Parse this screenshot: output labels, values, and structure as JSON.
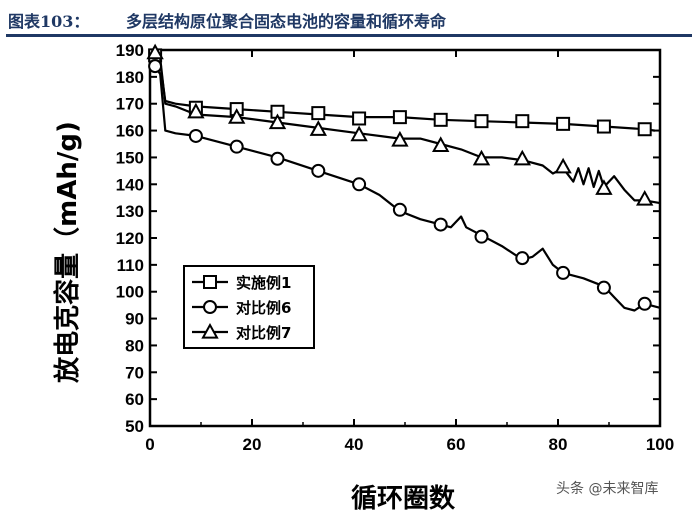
{
  "header": {
    "figure_no": "图表103：",
    "title": "多层结构原位聚合固态电池的容量和循环寿命"
  },
  "watermark": "头条 @未来智库",
  "chart_data": {
    "type": "line",
    "xlabel": "循环圈数",
    "ylabel": "放电克容量（mAh/g)",
    "xlim": [
      0,
      100
    ],
    "ylim": [
      50,
      190
    ],
    "xticks": [
      0,
      20,
      40,
      60,
      80,
      100
    ],
    "yticks": [
      50,
      60,
      70,
      80,
      90,
      100,
      110,
      120,
      130,
      140,
      150,
      160,
      170,
      180,
      190
    ],
    "grid": false,
    "legend_position": "lower-left",
    "series": [
      {
        "name": "实施例1",
        "marker": "square",
        "color": "#000000",
        "line": [
          [
            1,
            187
          ],
          [
            2,
            185
          ],
          [
            3,
            171
          ],
          [
            5,
            170
          ],
          [
            9,
            169
          ],
          [
            17,
            168
          ],
          [
            25,
            167
          ],
          [
            33,
            166
          ],
          [
            41,
            165
          ],
          [
            49,
            165
          ],
          [
            57,
            164
          ],
          [
            65,
            163.5
          ],
          [
            73,
            163
          ],
          [
            81,
            162.5
          ],
          [
            89,
            161.5
          ],
          [
            97,
            160.5
          ],
          [
            99,
            160
          ]
        ],
        "markers": [
          [
            1,
            188
          ],
          [
            9,
            168.5
          ],
          [
            17,
            168
          ],
          [
            25,
            167
          ],
          [
            33,
            166.5
          ],
          [
            41,
            164.5
          ],
          [
            49,
            165
          ],
          [
            57,
            164
          ],
          [
            65,
            163.5
          ],
          [
            73,
            163.5
          ],
          [
            81,
            162.5
          ],
          [
            89,
            161.5
          ],
          [
            97,
            160.5
          ]
        ]
      },
      {
        "name": "对比例6",
        "marker": "circle",
        "color": "#000000",
        "line": [
          [
            1,
            184
          ],
          [
            2,
            181
          ],
          [
            3,
            160
          ],
          [
            5,
            159
          ],
          [
            9,
            158
          ],
          [
            17,
            154
          ],
          [
            25,
            150
          ],
          [
            33,
            145
          ],
          [
            41,
            140
          ],
          [
            45,
            136
          ],
          [
            49,
            130
          ],
          [
            53,
            127
          ],
          [
            57,
            125
          ],
          [
            59,
            124
          ],
          [
            61,
            128
          ],
          [
            62,
            124
          ],
          [
            65,
            121
          ],
          [
            69,
            117
          ],
          [
            73,
            112
          ],
          [
            75,
            113
          ],
          [
            77,
            116
          ],
          [
            79,
            110
          ],
          [
            81,
            107
          ],
          [
            85,
            105
          ],
          [
            89,
            102
          ],
          [
            91,
            98
          ],
          [
            93,
            94
          ],
          [
            95,
            93
          ],
          [
            97,
            95.5
          ],
          [
            100,
            94
          ]
        ],
        "markers": [
          [
            1,
            184
          ],
          [
            9,
            158
          ],
          [
            17,
            154
          ],
          [
            25,
            149.5
          ],
          [
            33,
            145
          ],
          [
            41,
            140
          ],
          [
            49,
            130.5
          ],
          [
            57,
            125
          ],
          [
            65,
            120.5
          ],
          [
            73,
            112.5
          ],
          [
            81,
            107
          ],
          [
            89,
            101.5
          ],
          [
            97,
            95.5
          ]
        ]
      },
      {
        "name": "对比例7",
        "marker": "triangle",
        "color": "#000000",
        "line": [
          [
            1,
            189
          ],
          [
            2,
            187
          ],
          [
            3,
            170
          ],
          [
            5,
            169
          ],
          [
            9,
            166
          ],
          [
            17,
            165
          ],
          [
            25,
            163
          ],
          [
            33,
            161
          ],
          [
            41,
            159
          ],
          [
            49,
            157
          ],
          [
            53,
            157
          ],
          [
            57,
            155
          ],
          [
            61,
            153
          ],
          [
            65,
            150
          ],
          [
            69,
            150
          ],
          [
            73,
            149
          ],
          [
            77,
            147
          ],
          [
            79,
            144
          ],
          [
            81,
            146
          ],
          [
            83,
            141
          ],
          [
            84,
            146
          ],
          [
            85,
            140
          ],
          [
            86,
            146
          ],
          [
            87,
            139
          ],
          [
            88,
            145
          ],
          [
            89,
            139
          ],
          [
            91,
            143
          ],
          [
            93,
            138
          ],
          [
            95,
            134
          ],
          [
            97,
            134
          ],
          [
            100,
            133
          ]
        ],
        "markers": [
          [
            1,
            189
          ],
          [
            9,
            167
          ],
          [
            17,
            165
          ],
          [
            25,
            163
          ],
          [
            33,
            160.5
          ],
          [
            41,
            158.5
          ],
          [
            49,
            156.5
          ],
          [
            57,
            154.5
          ],
          [
            65,
            149.5
          ],
          [
            73,
            149.5
          ],
          [
            81,
            146.5
          ],
          [
            89,
            138.5
          ],
          [
            97,
            134.5
          ]
        ]
      }
    ]
  }
}
